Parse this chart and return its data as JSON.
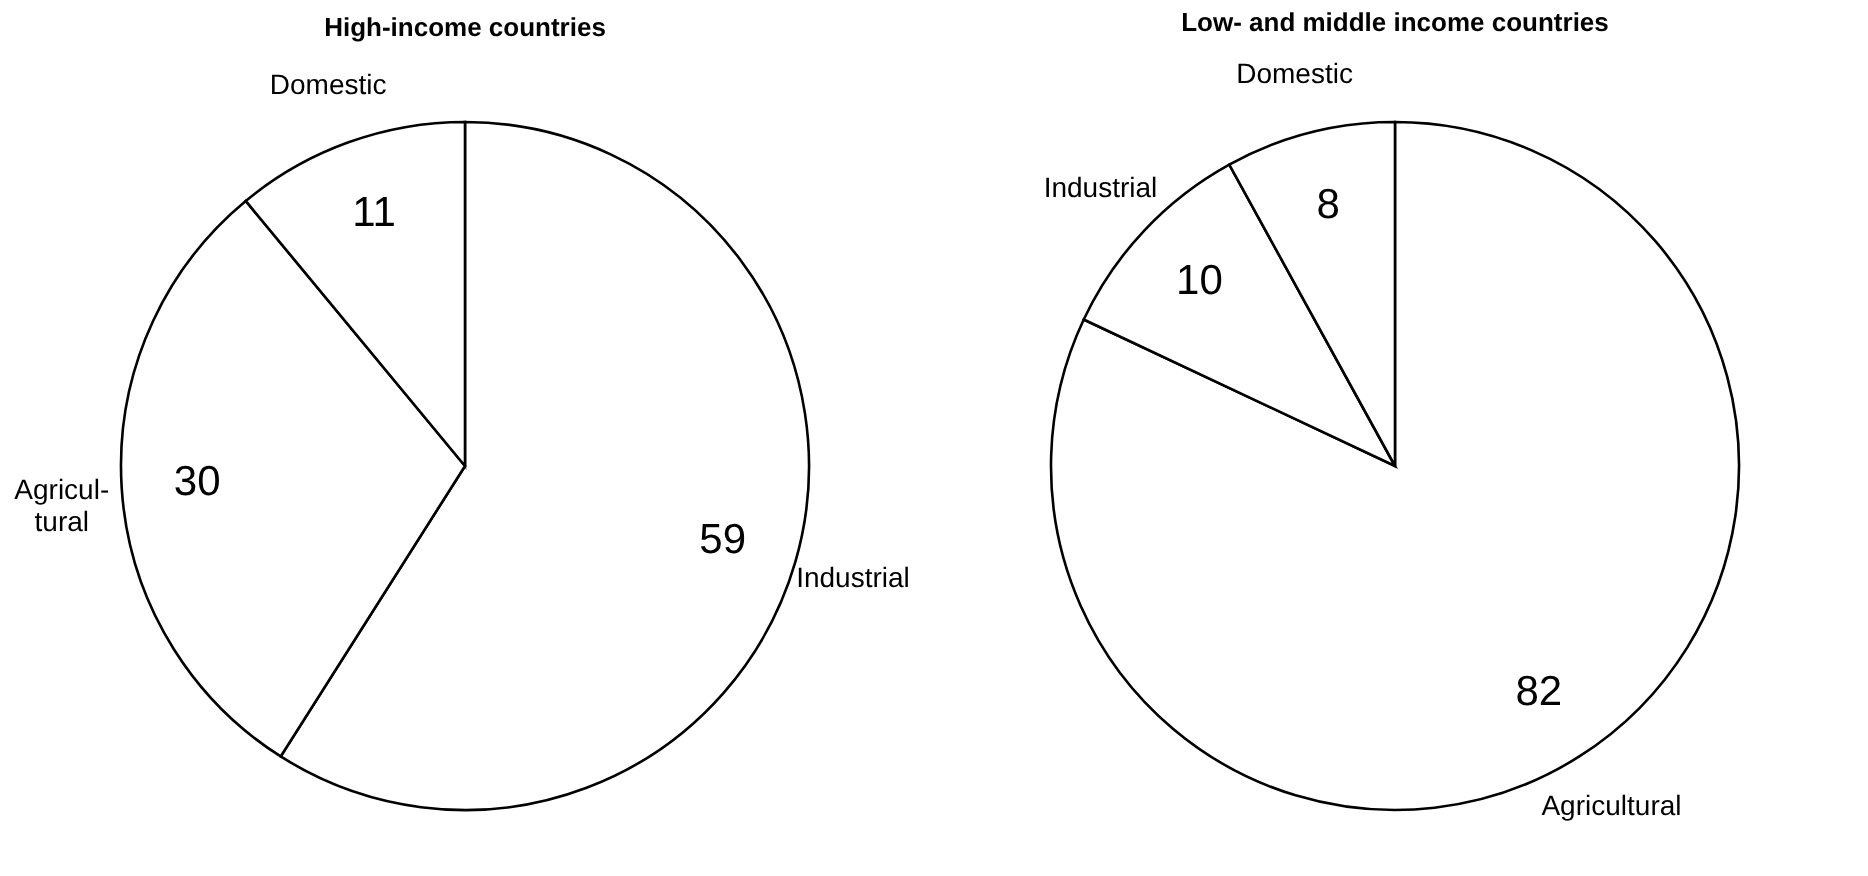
{
  "chart_data": [
    {
      "type": "pie",
      "title": "High-income countries",
      "categories": [
        "Industrial",
        "Agricul-\ntural",
        "Domestic"
      ],
      "values": [
        59,
        30,
        11
      ],
      "colors": [
        "#ffffff",
        "#ffffff",
        "#ffffff"
      ],
      "data_labels": true
    },
    {
      "type": "pie",
      "title": "Low- and middle income countries",
      "categories": [
        "Agricultural",
        "Industrial",
        "Domestic"
      ],
      "values": [
        82,
        10,
        8
      ],
      "colors": [
        "#ffffff",
        "#ffffff",
        "#ffffff"
      ],
      "data_labels": true
    }
  ]
}
